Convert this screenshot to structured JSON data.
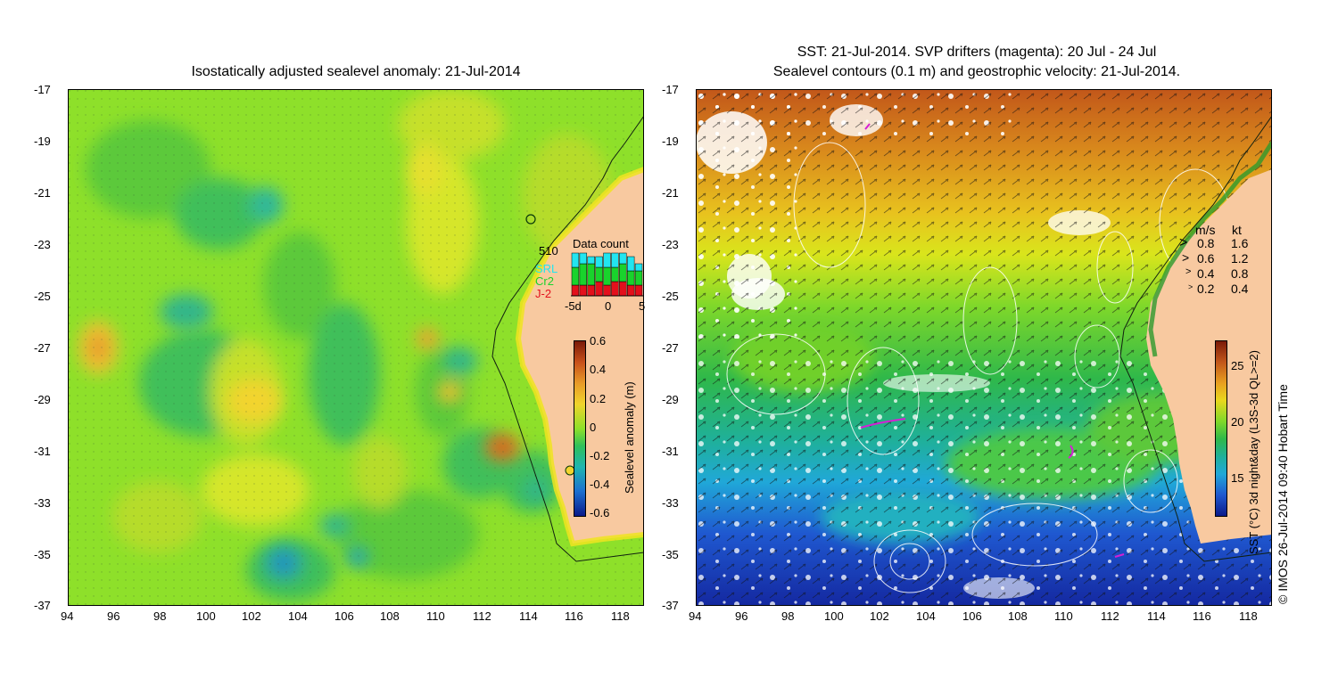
{
  "left_panel": {
    "title": "Isostatically adjusted sealevel anomaly: 21-Jul-2014",
    "y_ticks": [
      "-17",
      "-19",
      "-21",
      "-23",
      "-25",
      "-27",
      "-29",
      "-31",
      "-33",
      "-35",
      "-37"
    ],
    "x_ticks": [
      "94",
      "96",
      "98",
      "100",
      "102",
      "104",
      "106",
      "108",
      "110",
      "112",
      "114",
      "116",
      "118"
    ],
    "data_count": {
      "title": "Data count",
      "total": "510",
      "legend": [
        {
          "label": "SRL",
          "color": "#22e5f0"
        },
        {
          "label": "Cr2",
          "color": "#19d32c"
        },
        {
          "label": "J-2",
          "color": "#e3101c"
        }
      ],
      "x_ticks": [
        "-5d",
        "0",
        "5"
      ],
      "bars": [
        {
          "srl": 4,
          "cr2": 5,
          "j2": 3
        },
        {
          "srl": 3,
          "cr2": 6,
          "j2": 3
        },
        {
          "srl": 2,
          "cr2": 6,
          "j2": 3
        },
        {
          "srl": 3,
          "cr2": 4,
          "j2": 4
        },
        {
          "srl": 4,
          "cr2": 5,
          "j2": 3
        },
        {
          "srl": 4,
          "cr2": 4,
          "j2": 4
        },
        {
          "srl": 3,
          "cr2": 5,
          "j2": 4
        },
        {
          "srl": 4,
          "cr2": 4,
          "j2": 3
        },
        {
          "srl": 2,
          "cr2": 4,
          "j2": 3
        }
      ]
    },
    "colorbar": {
      "title": "Sealevel anomaly (m)",
      "ticks": [
        "0.6",
        "0.4",
        "0.2",
        "0",
        "-0.2",
        "-0.4",
        "-0.6"
      ]
    }
  },
  "right_panel": {
    "title_line1": "SST: 21-Jul-2014. SVP drifters (magenta): 20 Jul - 24 Jul",
    "title_line2": "Sealevel contours (0.1 m) and geostrophic velocity: 21-Jul-2014.",
    "y_ticks": [
      "-17",
      "-19",
      "-21",
      "-23",
      "-25",
      "-27",
      "-29",
      "-31",
      "-33",
      "-35",
      "-37"
    ],
    "x_ticks": [
      "94",
      "96",
      "98",
      "100",
      "102",
      "104",
      "106",
      "108",
      "110",
      "112",
      "114",
      "116",
      "118"
    ],
    "speed_legend": {
      "header_ms": "m/s",
      "header_kt": "kt",
      "rows": [
        {
          "ms": "0.8",
          "kt": "1.6"
        },
        {
          "ms": "0.6",
          "kt": "1.2"
        },
        {
          "ms": "0.4",
          "kt": "0.8"
        },
        {
          "ms": "0.2",
          "kt": "0.4"
        }
      ]
    },
    "colorbar": {
      "title": "SST (°C) 3d night&day (L3S-3d QL>=2)",
      "ticks": [
        "25",
        "20",
        "15"
      ]
    }
  },
  "credit": "© IMOS 26-Jul-2014 09:40 Hobart Time"
}
